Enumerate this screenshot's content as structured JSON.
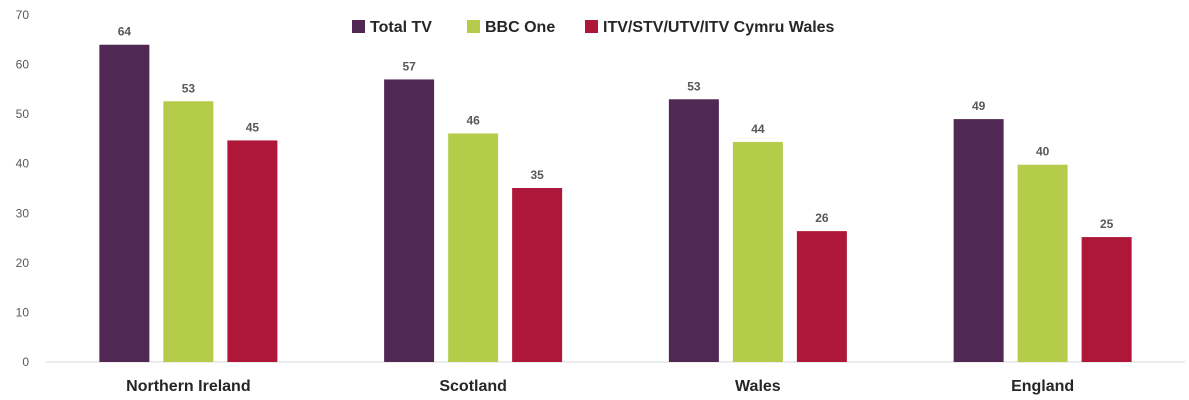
{
  "chart_data": {
    "type": "bar",
    "categories": [
      "Northern Ireland",
      "Scotland",
      "Wales",
      "England"
    ],
    "series": [
      {
        "name": "Total TV",
        "values": [
          64,
          57,
          53,
          49
        ],
        "labels": [
          "64",
          "57",
          "53",
          "49"
        ],
        "color": "#512854"
      },
      {
        "name": "BBC One",
        "values": [
          52.6,
          46.1,
          44.4,
          39.8
        ],
        "labels": [
          "53",
          "46",
          "44",
          "40"
        ],
        "color": "#B5CC4A"
      },
      {
        "name": "ITV/STV/UTV/ITV Cymru Wales",
        "values": [
          44.7,
          35.1,
          26.4,
          25.2
        ],
        "labels": [
          "45",
          "35",
          "26",
          "25"
        ],
        "color": "#AE1739"
      }
    ],
    "yticks": [
      "0",
      "10",
      "20",
      "30",
      "40",
      "50",
      "60",
      "70"
    ],
    "ylim": [
      0,
      70
    ],
    "grid": false,
    "legend_position": "top"
  }
}
